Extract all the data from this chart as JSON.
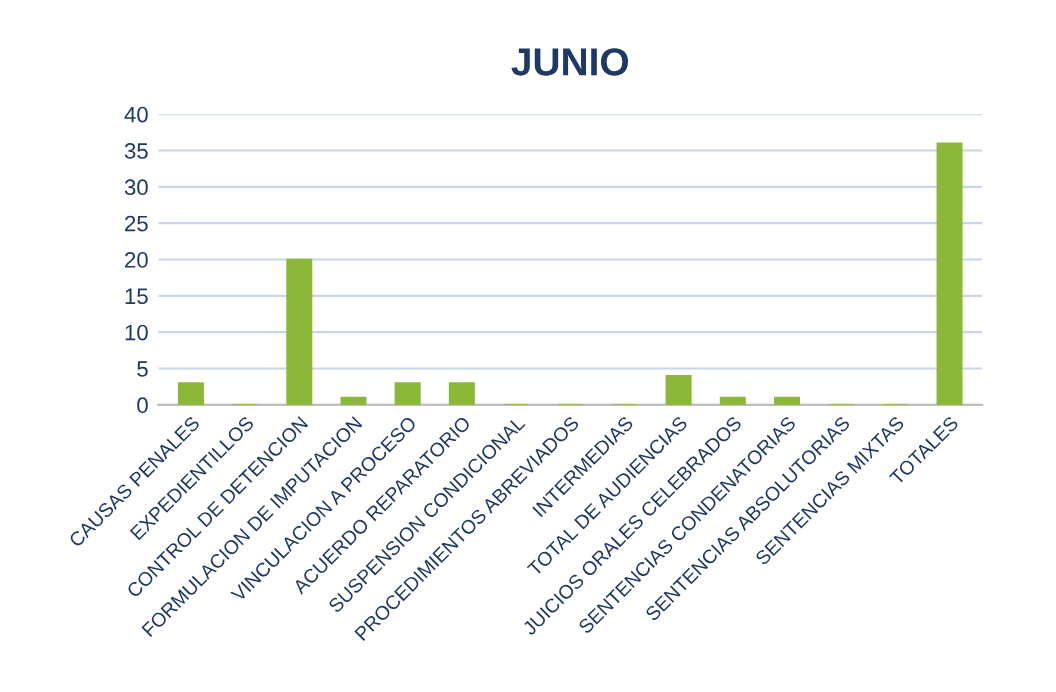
{
  "chart_data": {
    "type": "bar",
    "title": "JUNIO",
    "categories": [
      "CAUSAS PENALES",
      "EXPEDIENTILLOS",
      "CONTROL DE DETENCION",
      "FORMULACION DE IMPUTACION",
      "VINCULACION A PROCESO",
      "ACUERDO REPARATORIO",
      "SUSPENSION CONDICIONAL",
      "PROCEDIMIENTOS ABREVIADOS",
      "INTERMEDIAS",
      "TOTAL DE AUDIENCIAS",
      "JUICIOS ORALES CELEBRADOS",
      "SENTENCIAS CONDENATORIAS",
      "SENTENCIAS ABSOLUTORIAS",
      "SENTENCIAS MIXTAS",
      "TOTALES"
    ],
    "values": [
      3,
      0,
      20,
      1,
      3,
      3,
      0,
      0,
      0,
      4,
      1,
      1,
      0,
      0,
      36
    ],
    "color": "#8cb83a",
    "ylim": [
      0,
      40
    ],
    "yticks": [
      0,
      5,
      10,
      15,
      20,
      25,
      30,
      35,
      40
    ],
    "grid": "y",
    "legend": false
  }
}
